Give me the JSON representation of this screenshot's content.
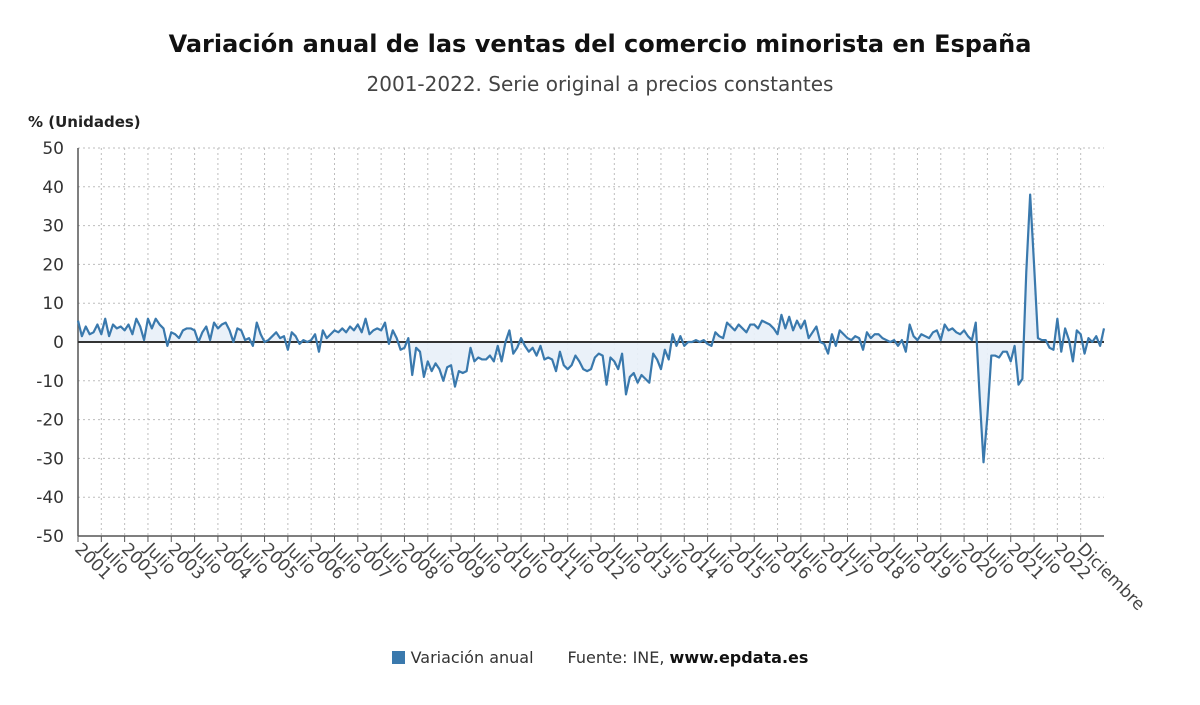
{
  "title": "Variación anual de las ventas del comercio minorista en España",
  "subtitle": "2001-2022. Serie original a precios constantes",
  "footer": {
    "legend_label": "Variación anual",
    "source_prefix": "Fuente: INE, ",
    "source_url": "www.epdata.es"
  },
  "colors": {
    "line": "#3a79ad",
    "area": "#e8f0f8",
    "grid": "#bdbdbd",
    "zero": "#333333"
  },
  "chart_data": {
    "type": "line",
    "ylabel": "% (Unidades)",
    "ylim": [
      -50,
      50
    ],
    "yticks": [
      50,
      40,
      30,
      20,
      10,
      0,
      -10,
      -20,
      -30,
      -40,
      -50
    ],
    "grid": true,
    "legend_position": "bottom",
    "x_start": "2001-01",
    "x_end": "2022-12",
    "xtick_labels": [
      "2001",
      "Julio",
      "2002",
      "Julio",
      "2003",
      "Julio",
      "2004",
      "Julio",
      "2005",
      "Julio",
      "2006",
      "Julio",
      "2007",
      "Julio",
      "2008",
      "Julio",
      "2009",
      "Julio",
      "2010",
      "Julio",
      "2011",
      "Julio",
      "2012",
      "Julio",
      "2013",
      "Julio",
      "2014",
      "Julio",
      "2015",
      "Julio",
      "2016",
      "Julio",
      "2017",
      "Julio",
      "2018",
      "Julio",
      "2019",
      "Julio",
      "2020",
      "Julio",
      "2021",
      "Julio",
      "2022",
      "Diciembre"
    ],
    "series": [
      {
        "name": "Variación anual",
        "values": [
          5.5,
          1.5,
          4.0,
          2.0,
          2.5,
          4.5,
          2.0,
          6.0,
          1.5,
          4.5,
          3.5,
          4.0,
          3.0,
          4.5,
          2.0,
          6.0,
          4.0,
          0.5,
          6.0,
          3.5,
          6.0,
          4.5,
          3.5,
          -1.0,
          2.5,
          2.0,
          1.0,
          3.0,
          3.5,
          3.5,
          3.0,
          0.0,
          2.5,
          4.0,
          0.5,
          5.0,
          3.5,
          4.5,
          5.0,
          3.0,
          0.0,
          3.5,
          3.0,
          0.5,
          1.0,
          -1.0,
          5.0,
          2.0,
          0.0,
          0.5,
          1.5,
          2.5,
          1.0,
          1.5,
          -2.0,
          2.5,
          1.5,
          -0.5,
          0.5,
          0.0,
          0.5,
          2.0,
          -2.5,
          3.0,
          1.0,
          2.0,
          3.0,
          2.5,
          3.5,
          2.5,
          4.0,
          3.0,
          4.5,
          2.5,
          6.0,
          2.0,
          3.0,
          3.5,
          3.0,
          5.0,
          -0.5,
          3.0,
          1.0,
          -2.0,
          -1.5,
          1.0,
          -8.5,
          -1.5,
          -2.5,
          -9.0,
          -5.0,
          -7.5,
          -5.5,
          -7.0,
          -10.0,
          -6.5,
          -6.0,
          -11.5,
          -7.5,
          -8.0,
          -7.5,
          -1.5,
          -5.0,
          -4.0,
          -4.5,
          -4.5,
          -3.5,
          -5.0,
          -1.0,
          -5.0,
          0.0,
          3.0,
          -3.0,
          -1.5,
          1.0,
          -1.0,
          -2.5,
          -1.5,
          -3.5,
          -1.0,
          -4.5,
          -4.0,
          -4.5,
          -7.5,
          -2.5,
          -6.0,
          -7.0,
          -6.0,
          -3.5,
          -5.0,
          -7.0,
          -7.5,
          -7.0,
          -4.0,
          -3.0,
          -3.5,
          -11.0,
          -4.0,
          -5.0,
          -7.0,
          -3.0,
          -13.5,
          -9.0,
          -8.0,
          -10.5,
          -8.5,
          -9.5,
          -10.5,
          -3.0,
          -4.5,
          -7.0,
          -2.0,
          -4.5,
          2.0,
          -1.0,
          1.5,
          -1.0,
          0.0,
          0.0,
          0.5,
          0.0,
          0.5,
          -0.5,
          -1.0,
          2.5,
          1.5,
          1.0,
          5.0,
          4.0,
          3.0,
          4.5,
          3.5,
          2.5,
          4.5,
          4.5,
          3.5,
          5.5,
          5.0,
          4.5,
          3.5,
          2.0,
          7.0,
          3.5,
          6.5,
          3.0,
          5.5,
          3.5,
          5.5,
          1.0,
          2.5,
          4.0,
          0.0,
          -0.5,
          -3.0,
          2.0,
          -1.0,
          3.0,
          2.0,
          1.0,
          0.5,
          1.5,
          1.0,
          -2.0,
          2.5,
          1.0,
          2.0,
          2.0,
          1.0,
          0.5,
          0.0,
          0.5,
          -1.0,
          0.5,
          -2.5,
          4.5,
          1.5,
          0.5,
          2.0,
          1.5,
          1.0,
          2.5,
          3.0,
          0.5,
          4.5,
          3.0,
          3.5,
          2.5,
          2.0,
          3.0,
          1.5,
          0.5,
          5.0,
          -14.0,
          -31.0,
          -19.0,
          -3.5,
          -3.5,
          -4.0,
          -2.5,
          -2.5,
          -5.0,
          -1.0,
          -11.0,
          -9.5,
          18.0,
          38.0,
          20.0,
          1.0,
          0.5,
          0.5,
          -1.5,
          -2.0,
          6.0,
          -2.5,
          3.5,
          0.5,
          -5.0,
          3.0,
          2.0,
          -3.0,
          1.0,
          0.0,
          1.5,
          -1.0,
          3.5
        ]
      }
    ]
  }
}
